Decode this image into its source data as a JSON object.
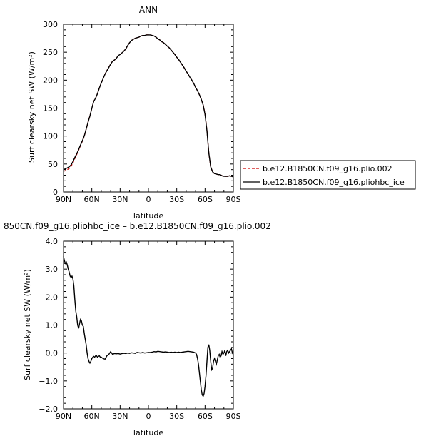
{
  "chart_data": [
    {
      "type": "line",
      "title": "ANN",
      "xlabel": "latitude",
      "ylabel": "Surf clearsky net SW (W/m²)",
      "xticks": [
        "90N",
        "60N",
        "30N",
        "0",
        "30S",
        "60S",
        "90S"
      ],
      "yticks": [
        "0",
        "50",
        "100",
        "150",
        "200",
        "250",
        "300"
      ],
      "xlim": [
        90,
        -90
      ],
      "ylim": [
        0,
        300
      ],
      "legend_position": "right",
      "series": [
        {
          "name": "b.e12.B1850CN.f09_g16.plio.002",
          "color": "#cc0000",
          "dash": "dashed",
          "x": [
            90,
            88,
            86,
            84,
            82,
            80,
            78,
            76,
            74,
            72,
            70,
            68,
            66,
            64,
            62,
            60,
            58,
            56,
            54,
            52,
            50,
            48,
            46,
            44,
            42,
            40,
            38,
            36,
            34,
            32,
            30,
            28,
            26,
            24,
            22,
            20,
            18,
            16,
            14,
            12,
            10,
            8,
            6,
            4,
            2,
            0,
            -2,
            -4,
            -6,
            -8,
            -10,
            -12,
            -14,
            -16,
            -18,
            -20,
            -22,
            -24,
            -26,
            -28,
            -30,
            -32,
            -34,
            -36,
            -38,
            -40,
            -42,
            -44,
            -46,
            -48,
            -50,
            -52,
            -54,
            -56,
            -58,
            -60,
            -62,
            -64,
            -66,
            -68,
            -70,
            -72,
            -74,
            -76,
            -78,
            -80,
            -82,
            -84,
            -86,
            -88,
            -90
          ],
          "values": [
            37,
            38,
            40,
            42,
            46,
            52,
            60,
            67,
            75,
            83,
            91,
            100,
            112,
            125,
            136,
            150,
            162,
            168,
            176,
            186,
            195,
            203,
            211,
            217,
            223,
            229,
            234,
            236,
            239,
            244,
            246,
            249,
            252,
            256,
            262,
            267,
            271,
            273,
            275,
            276,
            277,
            279,
            280,
            280,
            281,
            281,
            281,
            280,
            279,
            277,
            274,
            272,
            269,
            267,
            264,
            261,
            258,
            254,
            250,
            246,
            241,
            237,
            232,
            227,
            222,
            216,
            211,
            205,
            200,
            194,
            187,
            181,
            174,
            166,
            156,
            140,
            110,
            70,
            45,
            36,
            33,
            32,
            31,
            31,
            29,
            28,
            28,
            28,
            29,
            28,
            27
          ]
        },
        {
          "name": "b.e12.B1850CN.f09_g16.pliohbc_ice",
          "color": "#000000",
          "dash": "solid",
          "x": [
            90,
            88,
            86,
            84,
            82,
            80,
            78,
            76,
            74,
            72,
            70,
            68,
            66,
            64,
            62,
            60,
            58,
            56,
            54,
            52,
            50,
            48,
            46,
            44,
            42,
            40,
            38,
            36,
            34,
            32,
            30,
            28,
            26,
            24,
            22,
            20,
            18,
            16,
            14,
            12,
            10,
            8,
            6,
            4,
            2,
            0,
            -2,
            -4,
            -6,
            -8,
            -10,
            -12,
            -14,
            -16,
            -18,
            -20,
            -22,
            -24,
            -26,
            -28,
            -30,
            -32,
            -34,
            -36,
            -38,
            -40,
            -42,
            -44,
            -46,
            -48,
            -50,
            -52,
            -54,
            -56,
            -58,
            -60,
            -62,
            -64,
            -66,
            -68,
            -70,
            -72,
            -74,
            -76,
            -78,
            -80,
            -82,
            -84,
            -86,
            -88,
            -90
          ],
          "values": [
            40.4,
            41.2,
            43.1,
            44.9,
            48.5,
            54.2,
            61.8,
            68.3,
            76,
            84,
            91.5,
            100.4,
            112.2,
            124.8,
            135.8,
            149.8,
            161.9,
            167.9,
            175.9,
            185.9,
            194.9,
            202.9,
            210.9,
            216.9,
            222.8,
            228.9,
            233.9,
            236,
            239,
            244,
            246,
            249,
            252,
            256,
            262,
            267,
            271,
            273,
            275,
            276,
            277,
            279,
            280,
            280,
            281,
            281,
            281,
            280,
            279,
            277,
            274,
            272,
            269,
            267,
            264,
            261,
            258,
            254,
            250,
            246,
            241,
            237,
            232,
            227,
            222,
            216,
            211,
            205,
            200,
            194,
            187,
            181,
            174,
            166,
            155.5,
            138.7,
            109.5,
            70.2,
            45,
            36,
            33,
            32,
            31,
            31,
            29,
            28,
            28,
            28,
            29,
            28,
            27
          ]
        }
      ]
    },
    {
      "type": "line",
      "title": "850CN.f09_g16.pliohbc_ice – b.e12.B1850CN.f09_g16.plio.002",
      "xlabel": "latitude",
      "ylabel": "Surf clearsky net SW (W/m²)",
      "xticks": [
        "90N",
        "60N",
        "30N",
        "0",
        "30S",
        "60S",
        "90S"
      ],
      "yticks": [
        "−2.0",
        "−1.0",
        "0.0",
        "1.0",
        "2.0",
        "3.0",
        "4.0"
      ],
      "xlim": [
        90,
        -90
      ],
      "ylim": [
        -2,
        4
      ],
      "series": [
        {
          "color": "#000000",
          "dash": "solid",
          "x": [
            90,
            89,
            88,
            87,
            86,
            85,
            84,
            83,
            82,
            81,
            80,
            79,
            78,
            77,
            76,
            75,
            74,
            73,
            72,
            71,
            70,
            69,
            68,
            67,
            66,
            65,
            64,
            63,
            62,
            61,
            60,
            59,
            58,
            57,
            56,
            55,
            54,
            53,
            52,
            51,
            50,
            48,
            46,
            44,
            42,
            40,
            38,
            36,
            34,
            32,
            30,
            28,
            26,
            24,
            22,
            20,
            18,
            16,
            14,
            12,
            10,
            8,
            6,
            4,
            2,
            0,
            -2,
            -4,
            -6,
            -8,
            -10,
            -12,
            -14,
            -16,
            -18,
            -20,
            -22,
            -24,
            -26,
            -28,
            -30,
            -32,
            -34,
            -36,
            -38,
            -40,
            -42,
            -44,
            -46,
            -48,
            -50,
            -51,
            -52,
            -53,
            -54,
            -55,
            -56,
            -57,
            -58,
            -59,
            -60,
            -61,
            -62,
            -63,
            -64,
            -65,
            -66,
            -67,
            -68,
            -69,
            -70,
            -71,
            -72,
            -73,
            -74,
            -75,
            -76,
            -77,
            -78,
            -79,
            -80,
            -81,
            -82,
            -83,
            -84,
            -85,
            -86,
            -87,
            -88,
            -89,
            -90
          ],
          "values": [
            3.45,
            3.3,
            3.2,
            3.25,
            3.15,
            3.0,
            2.9,
            2.75,
            2.7,
            2.75,
            2.65,
            2.4,
            1.9,
            1.5,
            1.3,
            1.0,
            0.88,
            1.05,
            1.2,
            1.15,
            1.0,
            0.95,
            0.7,
            0.5,
            0.3,
            0.0,
            -0.2,
            -0.3,
            -0.36,
            -0.3,
            -0.2,
            -0.15,
            -0.12,
            -0.15,
            -0.1,
            -0.1,
            -0.15,
            -0.12,
            -0.1,
            -0.15,
            -0.15,
            -0.2,
            -0.22,
            -0.1,
            -0.05,
            0.05,
            -0.05,
            -0.02,
            -0.03,
            -0.02,
            -0.04,
            -0.02,
            -0.01,
            -0.02,
            0.0,
            -0.01,
            0.01,
            0.0,
            -0.01,
            0.02,
            0.01,
            0.0,
            0.02,
            0.0,
            0.01,
            0.02,
            0.02,
            0.03,
            0.05,
            0.04,
            0.06,
            0.05,
            0.04,
            0.03,
            0.04,
            0.03,
            0.02,
            0.03,
            0.02,
            0.03,
            0.02,
            0.03,
            0.02,
            0.03,
            0.04,
            0.05,
            0.06,
            0.05,
            0.04,
            0.03,
            0.0,
            -0.05,
            -0.2,
            -0.4,
            -0.7,
            -1.0,
            -1.3,
            -1.5,
            -1.55,
            -1.45,
            -1.2,
            -0.8,
            -0.3,
            0.2,
            0.3,
            0.1,
            -0.3,
            -0.6,
            -0.55,
            -0.3,
            -0.2,
            -0.3,
            -0.4,
            -0.25,
            -0.1,
            -0.05,
            -0.15,
            -0.1,
            0.05,
            -0.05,
            0.0,
            0.1,
            -0.1,
            0.05,
            0.1,
            0.0,
            0.05,
            0.1,
            0.15,
            0.0,
            0.05
          ]
        }
      ]
    }
  ]
}
